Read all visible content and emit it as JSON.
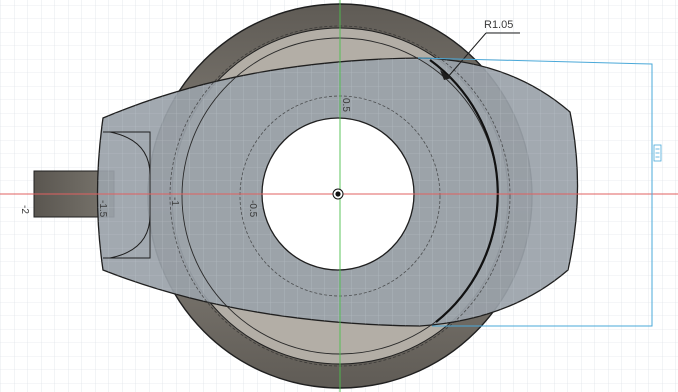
{
  "viewport": {
    "background": "#ffffff",
    "grid_color": "#cfd6dc",
    "grid_major_color": "#b9c2ca",
    "axis_x_color": "#e06060",
    "axis_y_color": "#4cbf4c",
    "origin_icon": "origin-point-icon"
  },
  "model": {
    "body_fill": "#8f969c",
    "ring_fill": "#6b6862",
    "ring_inner_fill": "#a7a39c",
    "edge_color": "#1f1f1f",
    "shaft_fill": "#5b5853"
  },
  "sketch": {
    "radius_dimension": "R1.05",
    "ruler_labels": [
      "-2",
      "-1.5",
      "-1",
      "-0.5",
      "0.5"
    ],
    "dimension_color": "#4aa8d8",
    "dimension_glyph": "dimension-tick-icon"
  }
}
